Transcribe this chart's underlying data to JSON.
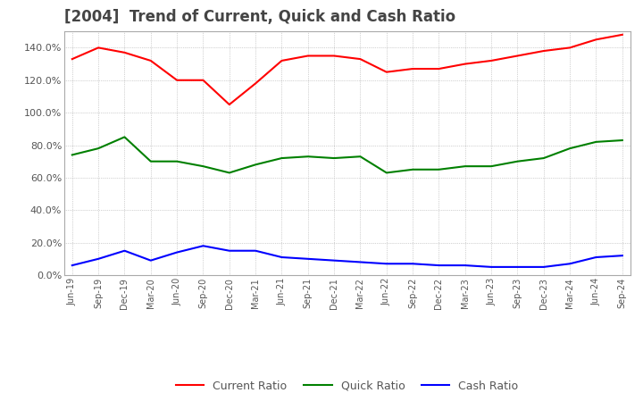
{
  "title": "[2004]  Trend of Current, Quick and Cash Ratio",
  "x_labels": [
    "Jun-19",
    "Sep-19",
    "Dec-19",
    "Mar-20",
    "Jun-20",
    "Sep-20",
    "Dec-20",
    "Mar-21",
    "Jun-21",
    "Sep-21",
    "Dec-21",
    "Mar-22",
    "Jun-22",
    "Sep-22",
    "Dec-22",
    "Mar-23",
    "Jun-23",
    "Sep-23",
    "Dec-23",
    "Mar-24",
    "Jun-24",
    "Sep-24"
  ],
  "current_ratio": [
    133,
    140,
    137,
    132,
    120,
    120,
    105,
    118,
    132,
    135,
    135,
    133,
    125,
    127,
    127,
    130,
    132,
    135,
    138,
    140,
    145,
    148
  ],
  "quick_ratio": [
    74,
    78,
    85,
    70,
    70,
    67,
    63,
    68,
    72,
    73,
    72,
    73,
    63,
    65,
    65,
    67,
    67,
    70,
    72,
    78,
    82,
    83
  ],
  "cash_ratio": [
    6,
    10,
    15,
    9,
    14,
    18,
    15,
    15,
    11,
    10,
    9,
    8,
    7,
    7,
    6,
    6,
    5,
    5,
    5,
    7,
    11,
    12
  ],
  "current_color": "#FF0000",
  "quick_color": "#008000",
  "cash_color": "#0000FF",
  "ylim": [
    0,
    150
  ],
  "yticks": [
    0,
    20,
    40,
    60,
    80,
    100,
    120,
    140
  ],
  "background_color": "#ffffff",
  "grid_color": "#aaaaaa",
  "legend_labels": [
    "Current Ratio",
    "Quick Ratio",
    "Cash Ratio"
  ]
}
